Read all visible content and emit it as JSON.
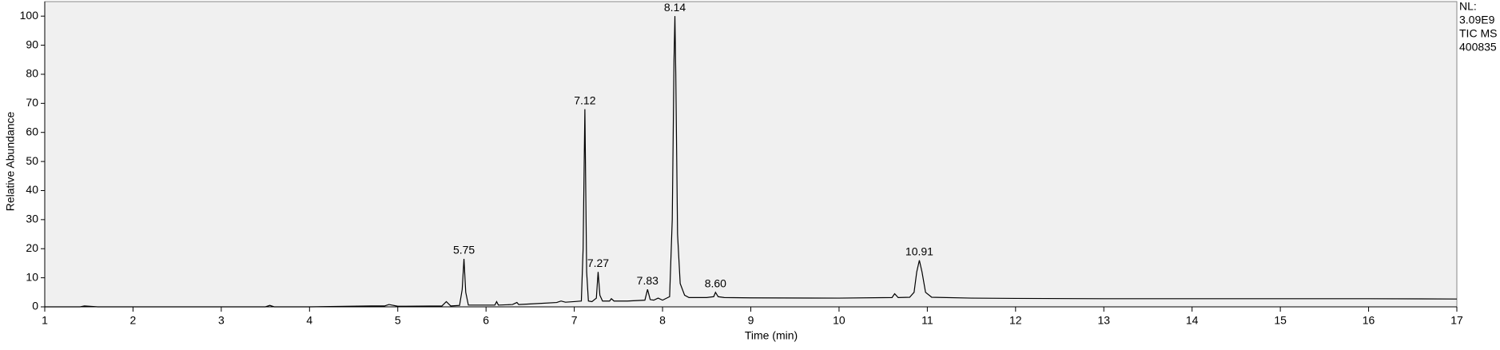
{
  "chart_data": {
    "type": "line",
    "x_label": "Time (min)",
    "y_label": "Relative Abundance",
    "info": [
      "NL:",
      "3.09E9",
      "TIC  MS",
      "400835"
    ],
    "x": [
      1,
      1.4,
      1.45,
      1.6,
      2,
      3,
      3.5,
      3.55,
      3.6,
      4,
      4.7,
      4.85,
      4.9,
      5,
      5.5,
      5.55,
      5.6,
      5.7,
      5.73,
      5.75,
      5.77,
      5.8,
      6,
      6.1,
      6.12,
      6.14,
      6.3,
      6.35,
      6.37,
      6.5,
      6.8,
      6.85,
      6.9,
      7.0,
      7.08,
      7.1,
      7.12,
      7.14,
      7.16,
      7.2,
      7.25,
      7.27,
      7.29,
      7.32,
      7.4,
      7.42,
      7.45,
      7.6,
      7.8,
      7.83,
      7.86,
      7.9,
      7.95,
      8.0,
      8.08,
      8.11,
      8.13,
      8.14,
      8.15,
      8.17,
      8.2,
      8.25,
      8.3,
      8.5,
      8.58,
      8.6,
      8.63,
      8.7,
      9,
      10,
      10.6,
      10.63,
      10.67,
      10.8,
      10.85,
      10.88,
      10.91,
      10.94,
      10.98,
      11.05,
      11.5,
      12,
      13,
      14,
      15,
      16,
      17
    ],
    "series": [
      {
        "color": "#000000",
        "values": [
          0,
          0,
          0.3,
          0,
          0,
          0,
          0,
          0.5,
          0,
          0,
          0.3,
          0.3,
          0.8,
          0.2,
          0.3,
          1.8,
          0.3,
          0.5,
          6,
          16.5,
          5,
          0.6,
          0.6,
          0.6,
          1.8,
          0.6,
          0.8,
          1.5,
          0.8,
          1,
          1.5,
          2,
          1.6,
          1.8,
          2,
          20,
          68,
          12,
          2,
          1.8,
          3,
          12,
          4,
          2,
          2,
          2.8,
          2,
          2,
          2.3,
          6,
          2.5,
          2.3,
          3,
          2.3,
          3.5,
          30,
          85,
          100,
          80,
          25,
          8,
          4,
          3.2,
          3.2,
          3.5,
          5,
          3.5,
          3.2,
          3.1,
          3,
          3.2,
          4.5,
          3.2,
          3.3,
          5,
          12,
          16,
          12,
          5,
          3.3,
          3,
          2.9,
          2.8,
          2.8,
          2.8,
          2.8,
          2.7
        ]
      }
    ],
    "annotations": [
      {
        "x": 5.75,
        "y": 16.5,
        "label": "5.75"
      },
      {
        "x": 7.12,
        "y": 68,
        "label": "7.12"
      },
      {
        "x": 7.27,
        "y": 12,
        "label": "7.27"
      },
      {
        "x": 7.83,
        "y": 6,
        "label": "7.83"
      },
      {
        "x": 8.14,
        "y": 100,
        "label": "8.14"
      },
      {
        "x": 8.6,
        "y": 5,
        "label": "8.60"
      },
      {
        "x": 10.91,
        "y": 16,
        "label": "10.91"
      }
    ],
    "xlim": [
      1,
      17
    ],
    "xticks": [
      1,
      2,
      3,
      4,
      5,
      6,
      7,
      8,
      9,
      10,
      11,
      12,
      13,
      14,
      15,
      16,
      17
    ],
    "ylim": [
      0,
      105
    ],
    "yticks": [
      0,
      10,
      20,
      30,
      40,
      50,
      60,
      70,
      80,
      90,
      100
    ],
    "background": "#f0f0f0"
  }
}
